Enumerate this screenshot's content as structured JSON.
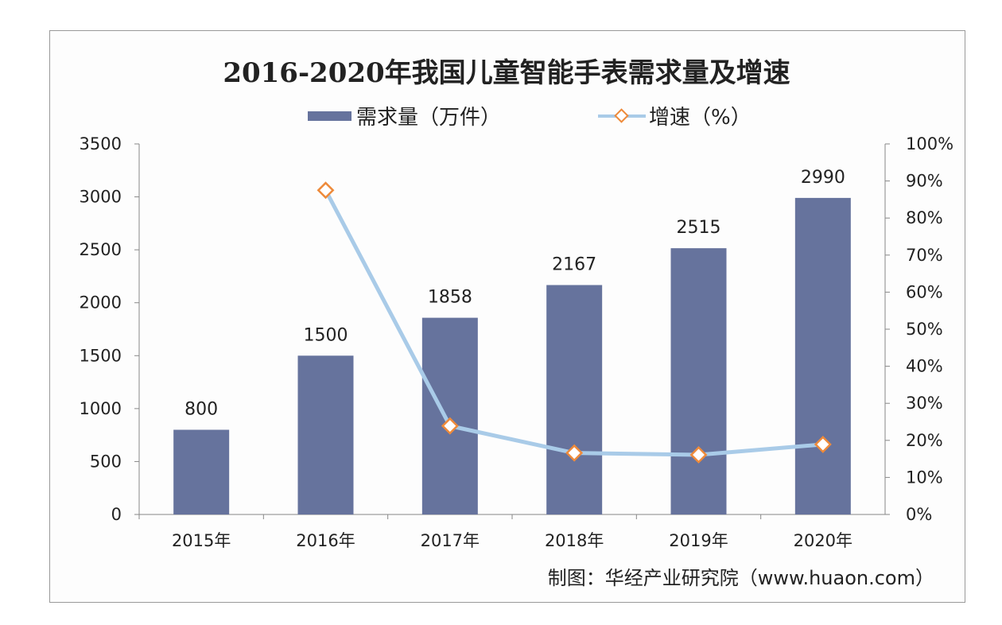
{
  "chart_data": {
    "type": "bar",
    "title": "2016-2020年我国儿童智能手表需求量及增速",
    "categories": [
      "2015年",
      "2016年",
      "2017年",
      "2018年",
      "2019年",
      "2020年"
    ],
    "series": [
      {
        "name": "需求量（万件）",
        "type": "bar",
        "axis": "left",
        "values": [
          800,
          1500,
          1858,
          2167,
          2515,
          2990
        ],
        "color": "#66739d"
      },
      {
        "name": "增速（%）",
        "type": "line",
        "axis": "right",
        "values": [
          null,
          87.5,
          23.9,
          16.6,
          16.1,
          18.9
        ],
        "color": "#a9cbe8",
        "marker_color": "#ee8a3a"
      }
    ],
    "data_labels": [
      "800",
      "1500",
      "1858",
      "2167",
      "2515",
      "2990"
    ],
    "ylim": [
      0,
      3500
    ],
    "yticks": [
      "0",
      "500",
      "1000",
      "1500",
      "2000",
      "2500",
      "3000",
      "3500"
    ],
    "y2lim": [
      0,
      100
    ],
    "y2ticks": [
      "0%",
      "10%",
      "20%",
      "30%",
      "40%",
      "50%",
      "60%",
      "70%",
      "80%",
      "90%",
      "100%"
    ],
    "legend": "top-center",
    "grid": false,
    "source": "制图：华经产业研究院（www.huaon.com）"
  }
}
